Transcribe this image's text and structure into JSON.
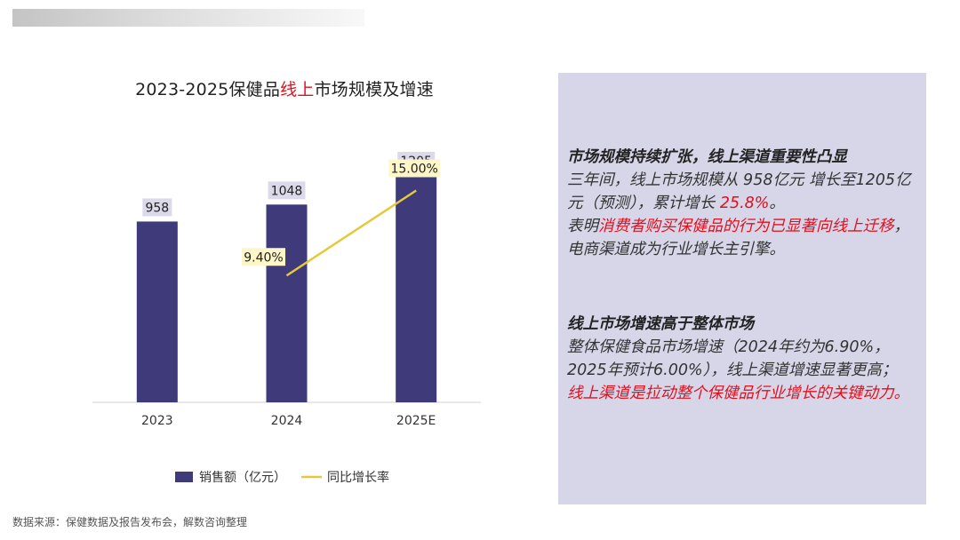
{
  "title": {
    "prefix": "2023-2025保健品",
    "highlight": "线上",
    "suffix": "市场规模及增速"
  },
  "chart_data": {
    "type": "bar",
    "categories": [
      "2023",
      "2024",
      "2025E"
    ],
    "series": [
      {
        "name": "销售额（亿元）",
        "type": "bar",
        "values": [
          958,
          1048,
          1205
        ],
        "labels": [
          "958",
          "1048",
          "1205"
        ],
        "color": "#3f3b7a"
      },
      {
        "name": "同比增长率",
        "type": "line",
        "values": [
          null,
          9.4,
          15.0
        ],
        "labels": [
          "",
          "9.40%",
          "15.00%"
        ],
        "color": "#e6c93a"
      }
    ],
    "ylim": [
      0,
      1400
    ],
    "grid": false,
    "legend": "bottom"
  },
  "panel": {
    "p1_heading": "市场规模持续扩张，线上渠道重要性凸显",
    "p1_a": "三年间，线上市场规模从 958亿元 增长至1205亿元（预测），累计增长 ",
    "p1_b": "25.8%",
    "p1_c": "。",
    "p1_d": "表明",
    "p1_e": "消费者购买保健品的行为已显著向线上迁移",
    "p1_f": "，电商渠道成为行业增长主引擎。",
    "p2_heading": "线上市场增速高于整体市场",
    "p2_a": "整体保健食品市场增速（2024年约为6.90%，2025年预计6.00%），线上渠道增速显著更高；",
    "p2_b": "线上渠道是拉动整个保健品行业增长的关键动力。"
  },
  "source": "数据来源：保健数据及报告发布会，解数咨询整理",
  "colors": {
    "bar": "#3f3b7a",
    "line": "#e6c93a",
    "label_bg": "#dcdaea",
    "line_label_bg": "#fdf6c8",
    "accent": "#e0101e",
    "panel_bg": "#d7d5e8"
  }
}
